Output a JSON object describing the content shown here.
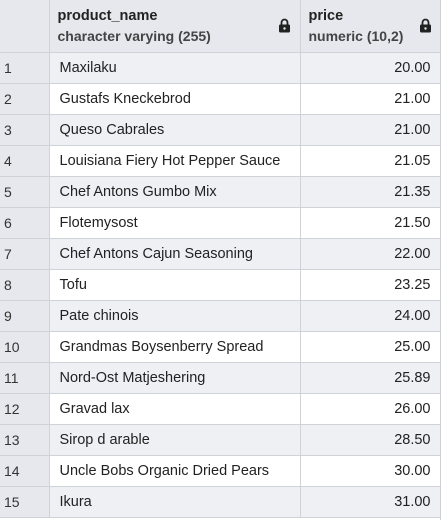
{
  "columns": [
    {
      "name": "product_name",
      "type": "character varying (255)"
    },
    {
      "name": "price",
      "type": "numeric (10,2)"
    }
  ],
  "icons": {
    "lock": "lock-icon"
  },
  "rows": [
    {
      "n": "1",
      "product_name": "Maxilaku",
      "price": "20.00"
    },
    {
      "n": "2",
      "product_name": "Gustafs Kneckebrod",
      "price": "21.00"
    },
    {
      "n": "3",
      "product_name": "Queso Cabrales",
      "price": "21.00"
    },
    {
      "n": "4",
      "product_name": "Louisiana Fiery Hot Pepper Sauce",
      "price": "21.05"
    },
    {
      "n": "5",
      "product_name": "Chef Antons Gumbo Mix",
      "price": "21.35"
    },
    {
      "n": "6",
      "product_name": "Flotemysost",
      "price": "21.50"
    },
    {
      "n": "7",
      "product_name": "Chef Antons Cajun Seasoning",
      "price": "22.00"
    },
    {
      "n": "8",
      "product_name": "Tofu",
      "price": "23.25"
    },
    {
      "n": "9",
      "product_name": "Pate chinois",
      "price": "24.00"
    },
    {
      "n": "10",
      "product_name": "Grandmas Boysenberry Spread",
      "price": "25.00"
    },
    {
      "n": "11",
      "product_name": "Nord-Ost Matjeshering",
      "price": "25.89"
    },
    {
      "n": "12",
      "product_name": "Gravad lax",
      "price": "26.00"
    },
    {
      "n": "13",
      "product_name": "Sirop d arable",
      "price": "28.50"
    },
    {
      "n": "14",
      "product_name": "Uncle Bobs Organic Dried Pears",
      "price": "30.00"
    },
    {
      "n": "15",
      "product_name": "Ikura",
      "price": "31.00"
    }
  ]
}
